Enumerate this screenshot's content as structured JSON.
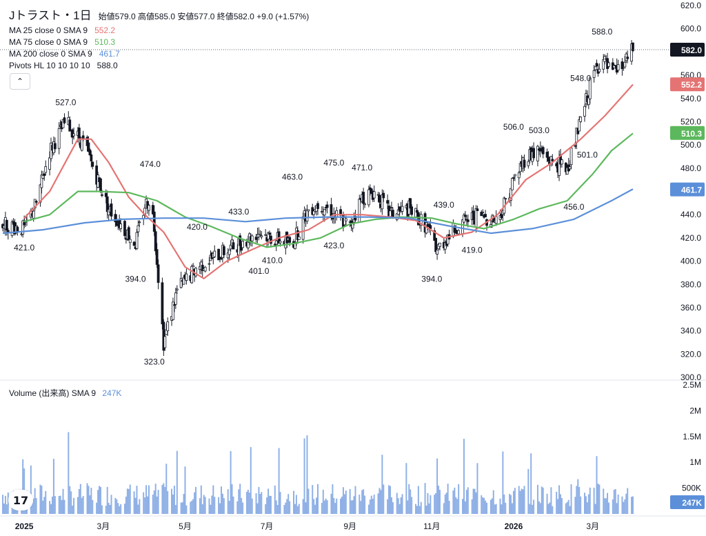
{
  "header": {
    "symbol": "Jトラスト・1日",
    "ohlc": {
      "open_label": "始値",
      "open": "579.0",
      "high_label": "高値",
      "high": "585.0",
      "low_label": "安値",
      "low": "577.0",
      "close_label": "終値",
      "close": "582.0",
      "change": "+9.0 (+1.57%)"
    }
  },
  "indicators": [
    {
      "label": "MA 25 close 0 SMA 9",
      "value": "552.2",
      "color": "#e57373"
    },
    {
      "label": "MA 75 close 0 SMA 9",
      "value": "510.3",
      "color": "#5cb85c"
    },
    {
      "label": "MA 200 close 0 SMA 9",
      "value": "461.7",
      "color": "#5b8fd9"
    },
    {
      "label": "Pivots HL 10 10 10 10",
      "value": "588.0",
      "color": "#131722"
    }
  ],
  "collapse_icon": "chevron-up-icon",
  "volume": {
    "label": "Volume (出来高)",
    "sma": "SMA 9",
    "value": "247K"
  },
  "price_axis_ticks": [
    "620.0",
    "600.0",
    "580.0",
    "560.0",
    "540.0",
    "520.0",
    "500.0",
    "480.0",
    "460.0",
    "440.0",
    "420.0",
    "400.0",
    "380.0",
    "360.0",
    "340.0",
    "320.0",
    "300.0"
  ],
  "volume_axis_ticks": [
    "2.5M",
    "2M",
    "1.5M",
    "1M",
    "500K"
  ],
  "price_tags": [
    {
      "text": "582.0",
      "value": 582,
      "color": "#131722"
    },
    {
      "text": "552.2",
      "value": 552.2,
      "color": "#e57373"
    },
    {
      "text": "510.3",
      "value": 510.3,
      "color": "#5cb85c"
    },
    {
      "text": "461.7",
      "value": 461.7,
      "color": "#5b8fd9"
    }
  ],
  "volume_tag": {
    "text": "247K"
  },
  "time_axis": [
    {
      "label": "2025",
      "date": "2025-01-01",
      "bold": true
    },
    {
      "label": "3月",
      "date": "2025-03-01"
    },
    {
      "label": "5月",
      "date": "2025-05-01"
    },
    {
      "label": "7月",
      "date": "2025-07-01"
    },
    {
      "label": "9月",
      "date": "2025-09-01"
    },
    {
      "label": "11月",
      "date": "2025-11-01"
    },
    {
      "label": "2026",
      "date": "2026-01-01",
      "bold": true
    },
    {
      "label": "3月",
      "date": "2026-03-01"
    }
  ],
  "chart_data": {
    "type": "line",
    "x_range": [
      "2024-12-16",
      "2026-03-31"
    ],
    "y_range": [
      300,
      620
    ],
    "volume_range": [
      0,
      2500000
    ],
    "series": [
      {
        "name": "MA 25",
        "color": "#e57373",
        "x": [
          "2025-01-01",
          "2025-01-20",
          "2025-02-10",
          "2025-02-20",
          "2025-03-05",
          "2025-03-20",
          "2025-04-01",
          "2025-04-15",
          "2025-05-01",
          "2025-05-15",
          "2025-06-01",
          "2025-06-20",
          "2025-07-10",
          "2025-08-01",
          "2025-08-20",
          "2025-09-10",
          "2025-10-01",
          "2025-10-20",
          "2025-11-10",
          "2025-12-01",
          "2025-12-20",
          "2026-01-10",
          "2026-01-30",
          "2026-02-20",
          "2026-03-10",
          "2026-03-31"
        ],
        "y": [
          437,
          460,
          505,
          505,
          485,
          455,
          440,
          425,
          395,
          385,
          400,
          410,
          420,
          427,
          440,
          440,
          438,
          435,
          420,
          425,
          440,
          470,
          485,
          505,
          525,
          552
        ]
      },
      {
        "name": "MA 75",
        "color": "#5cb85c",
        "x": [
          "2025-01-01",
          "2025-01-20",
          "2025-02-10",
          "2025-02-25",
          "2025-03-20",
          "2025-04-10",
          "2025-05-01",
          "2025-05-20",
          "2025-06-10",
          "2025-07-01",
          "2025-07-20",
          "2025-08-10",
          "2025-09-01",
          "2025-09-20",
          "2025-10-10",
          "2025-11-01",
          "2025-11-20",
          "2025-12-10",
          "2026-01-01",
          "2026-01-20",
          "2026-02-10",
          "2026-03-01",
          "2026-03-15",
          "2026-03-31"
        ],
        "y": [
          434,
          440,
          460,
          460,
          459,
          452,
          438,
          430,
          420,
          412,
          415,
          420,
          432,
          436,
          438,
          437,
          432,
          428,
          436,
          445,
          452,
          475,
          495,
          510
        ]
      },
      {
        "name": "MA 200",
        "color": "#5b8fd9",
        "x": [
          "2024-12-16",
          "2025-01-15",
          "2025-02-15",
          "2025-03-15",
          "2025-04-15",
          "2025-05-15",
          "2025-06-15",
          "2025-07-15",
          "2025-08-15",
          "2025-09-15",
          "2025-10-15",
          "2025-11-15",
          "2025-12-15",
          "2026-01-15",
          "2026-02-15",
          "2026-03-15",
          "2026-03-31"
        ],
        "y": [
          424,
          427,
          433,
          436,
          437,
          437,
          434,
          437,
          438,
          438,
          437,
          430,
          424,
          428,
          436,
          452,
          462
        ]
      },
      {
        "name": "Close",
        "color": "#131722",
        "x": [
          "2024-12-16",
          "2025-01-01",
          "2025-01-10",
          "2025-01-20",
          "2025-02-01",
          "2025-02-08",
          "2025-02-15",
          "2025-02-25",
          "2025-03-05",
          "2025-03-15",
          "2025-03-25",
          "2025-04-01",
          "2025-04-05",
          "2025-04-08",
          "2025-04-15",
          "2025-04-25",
          "2025-05-10",
          "2025-05-25",
          "2025-06-10",
          "2025-06-25",
          "2025-07-05",
          "2025-07-20",
          "2025-08-01",
          "2025-08-10",
          "2025-08-20",
          "2025-09-01",
          "2025-09-10",
          "2025-09-20",
          "2025-10-01",
          "2025-10-15",
          "2025-10-28",
          "2025-11-05",
          "2025-11-20",
          "2025-12-05",
          "2025-12-20",
          "2026-01-01",
          "2026-01-10",
          "2026-01-20",
          "2026-01-30",
          "2026-02-10",
          "2026-02-20",
          "2026-03-01",
          "2026-03-08",
          "2026-03-15",
          "2026-03-25",
          "2026-03-31"
        ],
        "y": [
          432,
          428,
          450,
          495,
          520,
          510,
          500,
          470,
          445,
          430,
          415,
          448,
          455,
          430,
          330,
          375,
          395,
          405,
          415,
          425,
          420,
          415,
          445,
          450,
          440,
          430,
          455,
          460,
          440,
          445,
          430,
          410,
          430,
          440,
          435,
          470,
          490,
          495,
          485,
          480,
          520,
          560,
          575,
          560,
          570,
          582
        ]
      }
    ],
    "pivots": [
      {
        "label": "527.0",
        "date": "2025-02-01",
        "value": 527,
        "pos": "above"
      },
      {
        "label": "421.0",
        "date": "2025-01-01",
        "value": 421,
        "pos": "below"
      },
      {
        "label": "474.0",
        "date": "2025-04-05",
        "value": 474,
        "pos": "above"
      },
      {
        "label": "394.0",
        "date": "2025-03-25",
        "value": 394,
        "pos": "below"
      },
      {
        "label": "323.0",
        "date": "2025-04-08",
        "value": 323,
        "pos": "below"
      },
      {
        "label": "420.0",
        "date": "2025-05-10",
        "value": 420,
        "pos": "above"
      },
      {
        "label": "433.0",
        "date": "2025-06-10",
        "value": 433,
        "pos": "above"
      },
      {
        "label": "401.0",
        "date": "2025-06-25",
        "value": 401,
        "pos": "below"
      },
      {
        "label": "410.0",
        "date": "2025-07-05",
        "value": 410,
        "pos": "below"
      },
      {
        "label": "463.0",
        "date": "2025-07-20",
        "value": 463,
        "pos": "above"
      },
      {
        "label": "475.0",
        "date": "2025-08-20",
        "value": 475,
        "pos": "above"
      },
      {
        "label": "423.0",
        "date": "2025-08-20",
        "value": 423,
        "pos": "below"
      },
      {
        "label": "471.0",
        "date": "2025-09-10",
        "value": 471,
        "pos": "above"
      },
      {
        "label": "394.0",
        "date": "2025-11-01",
        "value": 394,
        "pos": "below"
      },
      {
        "label": "439.0",
        "date": "2025-11-10",
        "value": 439,
        "pos": "above"
      },
      {
        "label": "419.0",
        "date": "2025-12-01",
        "value": 419,
        "pos": "below"
      },
      {
        "label": "506.0",
        "date": "2026-01-01",
        "value": 506,
        "pos": "above"
      },
      {
        "label": "503.0",
        "date": "2026-01-20",
        "value": 503,
        "pos": "above"
      },
      {
        "label": "456.0",
        "date": "2026-02-15",
        "value": 456,
        "pos": "below"
      },
      {
        "label": "501.0",
        "date": "2026-02-25",
        "value": 501,
        "pos": "below"
      },
      {
        "label": "548.0",
        "date": "2026-02-20",
        "value": 548,
        "pos": "above"
      },
      {
        "label": "588.0",
        "date": "2026-03-08",
        "value": 588,
        "pos": "above"
      }
    ],
    "volume_sma": "247K"
  }
}
